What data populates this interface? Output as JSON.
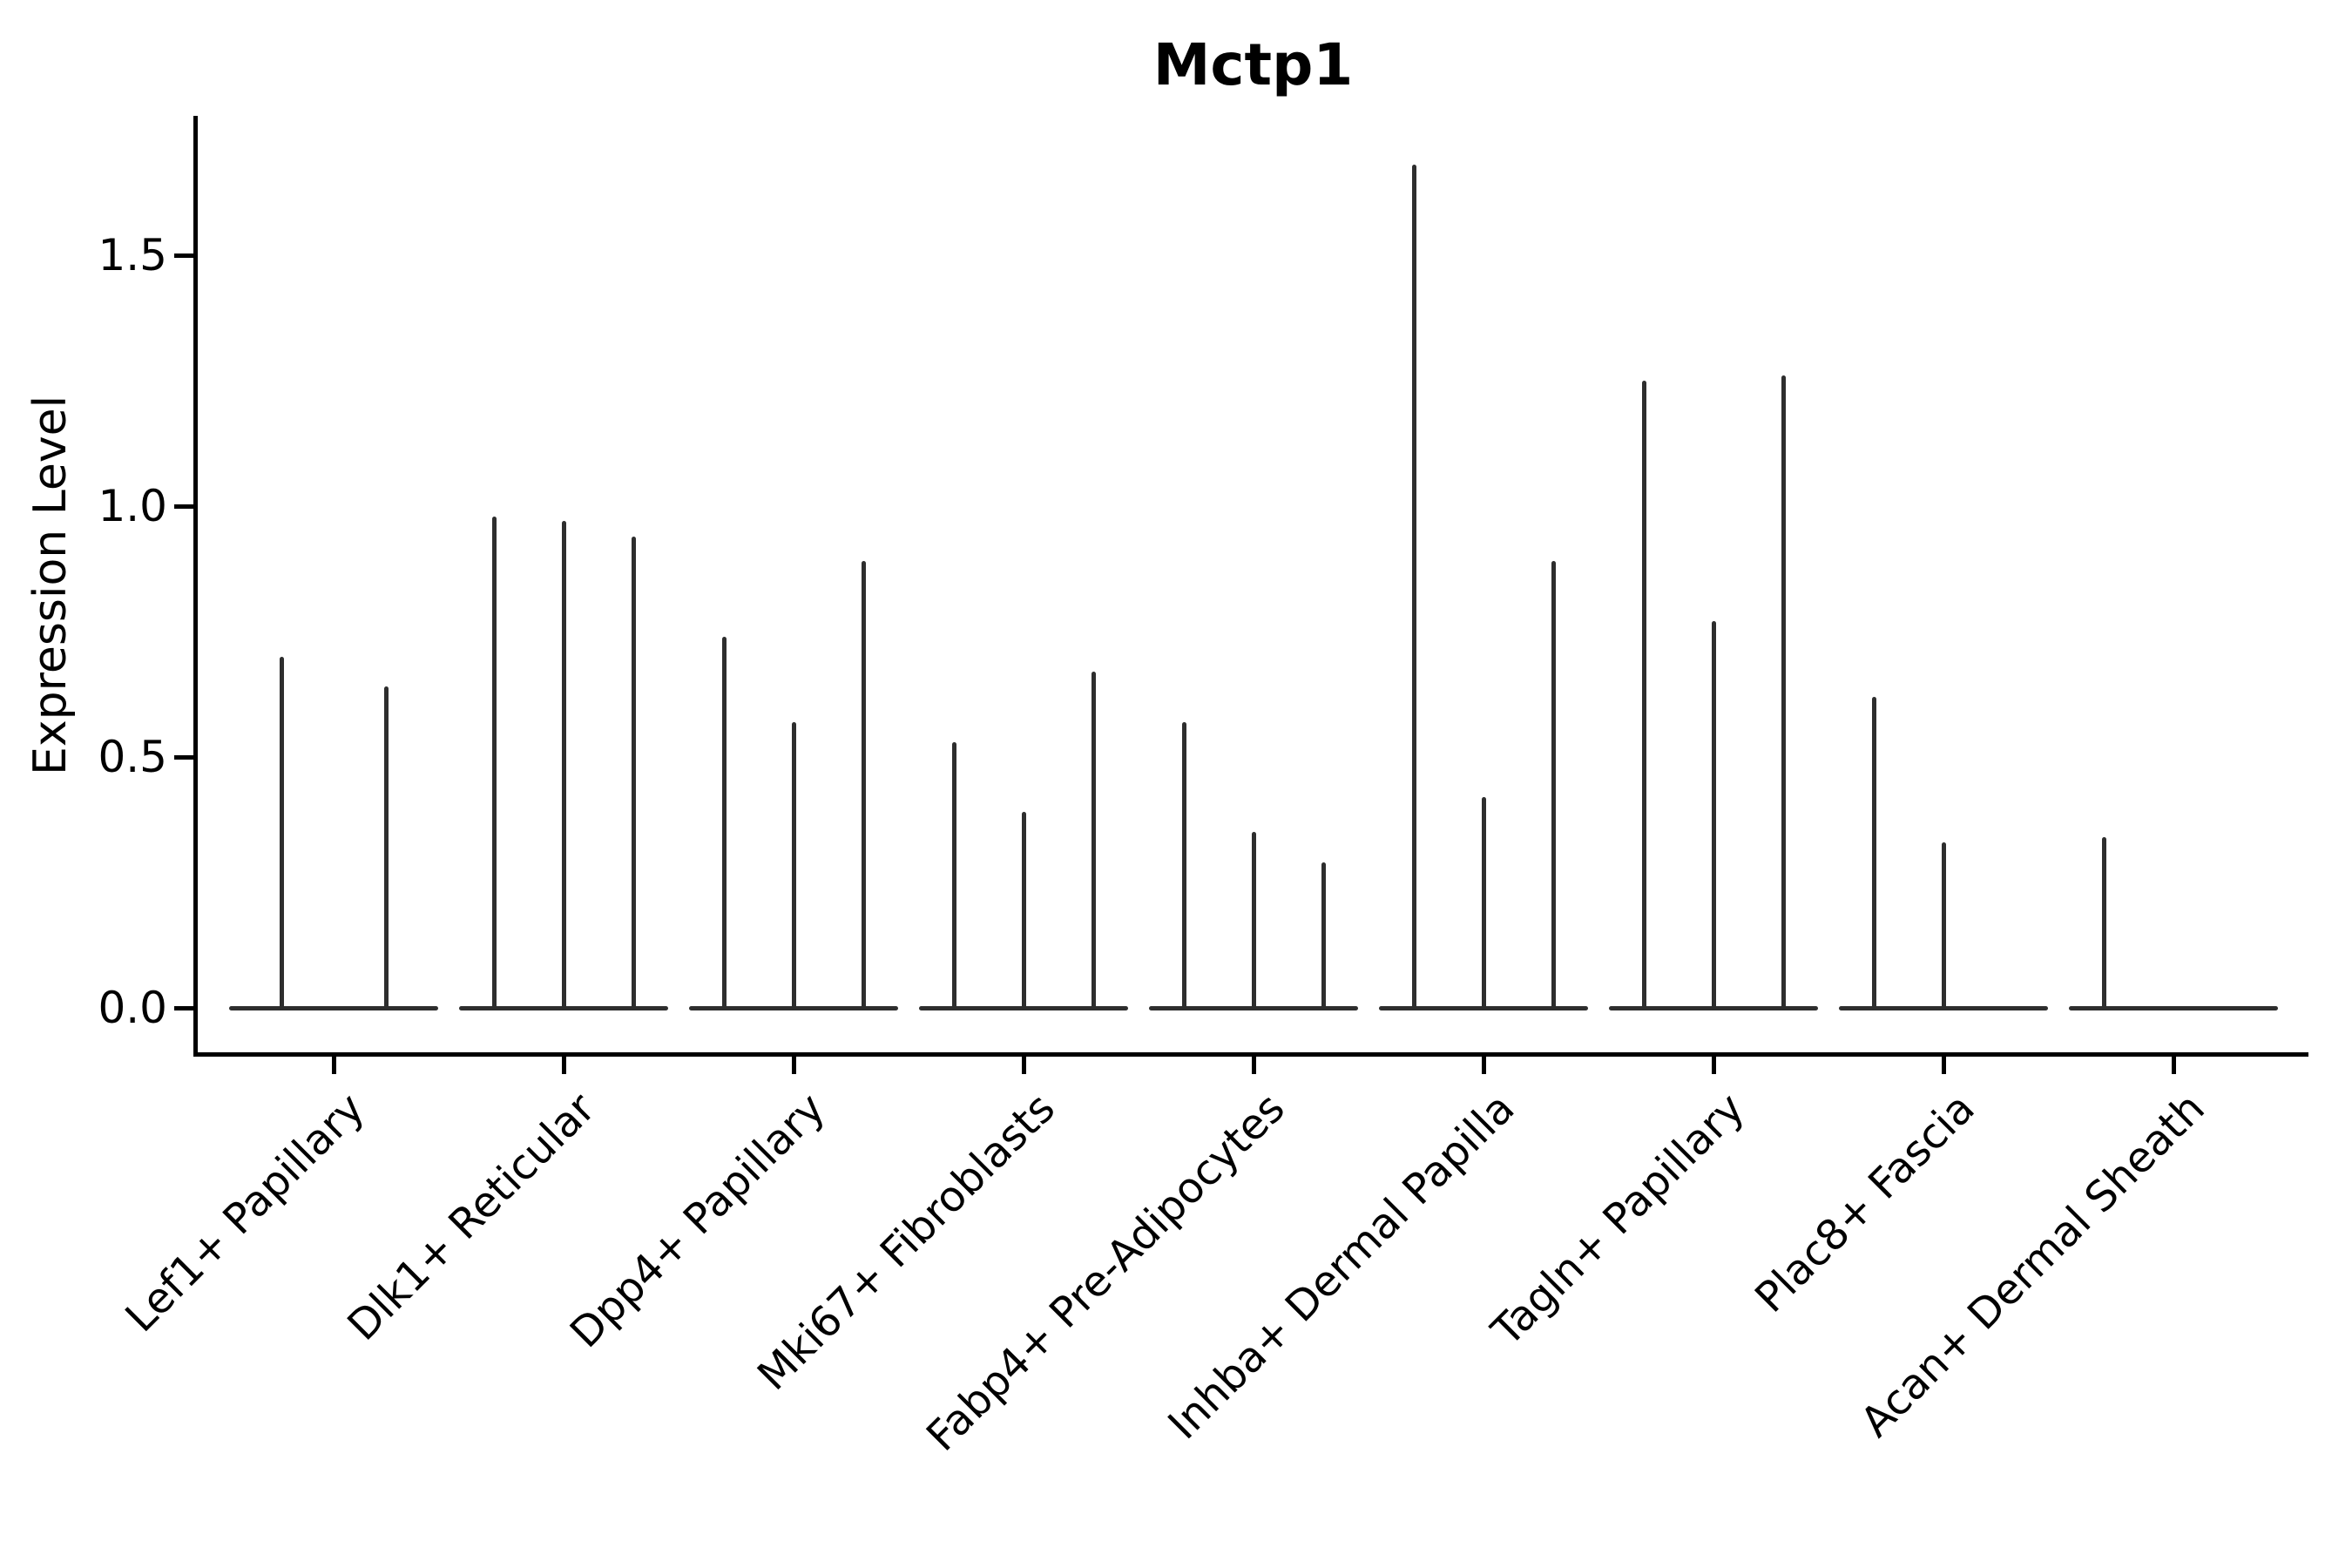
{
  "title": "Mctp1",
  "colors": {
    "background": "#ffffff",
    "axis": "#000000",
    "text": "#000000",
    "violin_line": "#2e2e2e"
  },
  "chart_data": {
    "type": "violin",
    "title": "Mctp1",
    "xlabel": "",
    "ylabel": "Expression Level",
    "grid": false,
    "legend_position": "none",
    "ylim": [
      -0.09,
      1.78
    ],
    "yticks": [
      0.0,
      0.5,
      1.0,
      1.5
    ],
    "ytick_labels": [
      "0.0",
      "0.5",
      "1.0",
      "1.5"
    ],
    "categories": [
      "Lef1+ Papillary",
      "Dlk1+ Reticular",
      "Dpp4+ Papillary",
      "Mki67+ Fibroblasts",
      "Fabp4+ Pre-Adipocytes",
      "Inhba+ Dermal Papilla",
      "Tagln+ Papillary",
      "Plac8+ Fascia",
      "Acan+ Dermal Sheath"
    ],
    "violins": [
      {
        "category": "Lef1+ Papillary",
        "spikes": [
          {
            "offset": -60,
            "peak": 0.7
          },
          {
            "offset": 60,
            "peak": 0.64
          }
        ]
      },
      {
        "category": "Dlk1+ Reticular",
        "spikes": [
          {
            "offset": -80,
            "peak": 0.98
          },
          {
            "offset": 0,
            "peak": 0.97
          },
          {
            "offset": 80,
            "peak": 0.94
          }
        ]
      },
      {
        "category": "Dpp4+ Papillary",
        "spikes": [
          {
            "offset": -80,
            "peak": 0.74
          },
          {
            "offset": 0,
            "peak": 0.57
          },
          {
            "offset": 80,
            "peak": 0.89
          }
        ]
      },
      {
        "category": "Mki67+ Fibroblasts",
        "spikes": [
          {
            "offset": -80,
            "peak": 0.53
          },
          {
            "offset": 0,
            "peak": 0.39
          },
          {
            "offset": 80,
            "peak": 0.67
          }
        ]
      },
      {
        "category": "Fabp4+ Pre-Adipocytes",
        "spikes": [
          {
            "offset": -80,
            "peak": 0.57
          },
          {
            "offset": 0,
            "peak": 0.35
          },
          {
            "offset": 80,
            "peak": 0.29
          }
        ]
      },
      {
        "category": "Inhba+ Dermal Papilla",
        "spikes": [
          {
            "offset": -80,
            "peak": 1.68
          },
          {
            "offset": 0,
            "peak": 0.42
          },
          {
            "offset": 80,
            "peak": 0.89
          }
        ]
      },
      {
        "category": "Tagln+ Papillary",
        "spikes": [
          {
            "offset": -80,
            "peak": 1.25
          },
          {
            "offset": 0,
            "peak": 0.77
          },
          {
            "offset": 80,
            "peak": 1.26
          }
        ]
      },
      {
        "category": "Plac8+ Fascia",
        "spikes": [
          {
            "offset": -80,
            "peak": 0.62
          },
          {
            "offset": 0,
            "peak": 0.33
          }
        ]
      },
      {
        "category": "Acan+ Dermal Sheath",
        "spikes": [
          {
            "offset": -80,
            "peak": 0.34
          }
        ]
      }
    ]
  }
}
